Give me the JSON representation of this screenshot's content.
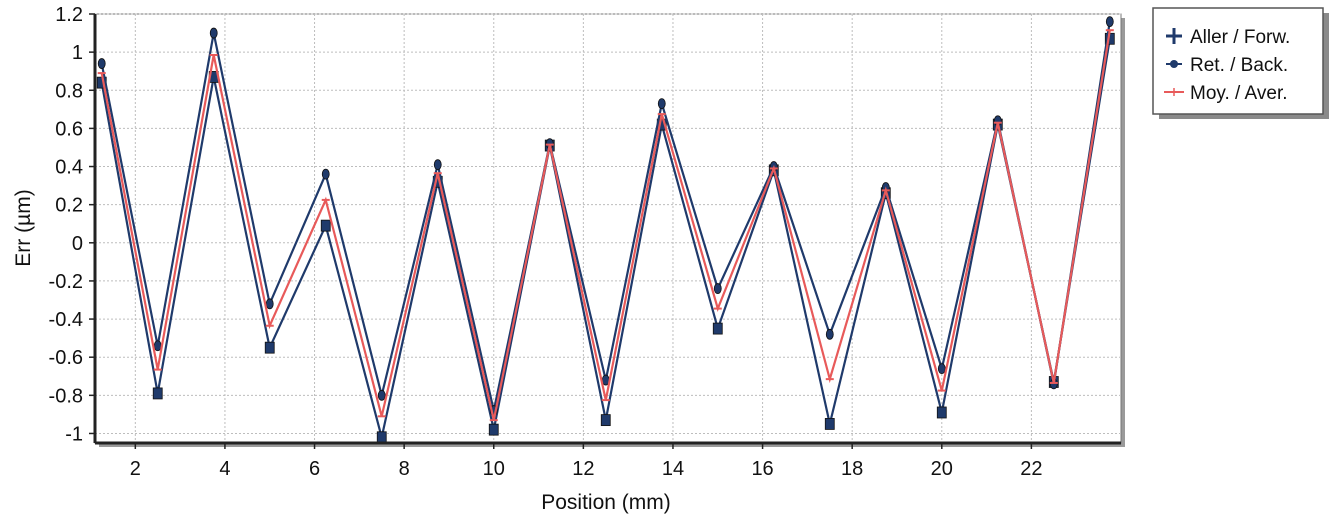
{
  "chart_data": {
    "type": "line",
    "xlabel": "Position (mm)",
    "ylabel": "Err (µm)",
    "xlim": [
      1.1,
      24.0
    ],
    "ylim": [
      -1.05,
      1.2
    ],
    "grid": true,
    "legend_position": "top-right outside",
    "xticks": [
      2,
      4,
      6,
      8,
      10,
      12,
      14,
      16,
      18,
      20,
      22
    ],
    "yticks": [
      -1,
      -0.8,
      -0.6,
      -0.4,
      -0.2,
      0,
      0.2,
      0.4,
      0.6,
      0.8,
      1,
      1.2
    ],
    "x": [
      1.25,
      2.5,
      3.75,
      5.0,
      6.25,
      7.5,
      8.75,
      10.0,
      11.25,
      12.5,
      13.75,
      15.0,
      16.25,
      17.5,
      18.75,
      20.0,
      21.25,
      22.5,
      23.75
    ],
    "series": [
      {
        "name": "Aller / Forw.",
        "marker": "square",
        "color": "#1f3a6b",
        "values": [
          0.84,
          -0.79,
          0.87,
          -0.55,
          0.09,
          -1.02,
          0.32,
          -0.98,
          0.51,
          -0.93,
          0.62,
          -0.45,
          0.38,
          -0.95,
          0.26,
          -0.89,
          0.62,
          -0.73,
          1.07
        ]
      },
      {
        "name": "Ret. / Back.",
        "marker": "plus",
        "color": "#1f3a6b",
        "values": [
          0.94,
          -0.54,
          1.1,
          -0.32,
          0.36,
          -0.8,
          0.41,
          -0.88,
          0.52,
          -0.72,
          0.73,
          -0.24,
          0.4,
          -0.48,
          0.29,
          -0.66,
          0.64,
          -0.74,
          1.16
        ]
      },
      {
        "name": "Moy. / Aver.",
        "marker": "dash",
        "color": "#e85a5a",
        "values": [
          0.89,
          -0.665,
          0.985,
          -0.435,
          0.225,
          -0.91,
          0.365,
          -0.93,
          0.515,
          -0.825,
          0.675,
          -0.345,
          0.39,
          -0.715,
          0.275,
          -0.775,
          0.63,
          -0.735,
          1.115
        ]
      }
    ]
  }
}
